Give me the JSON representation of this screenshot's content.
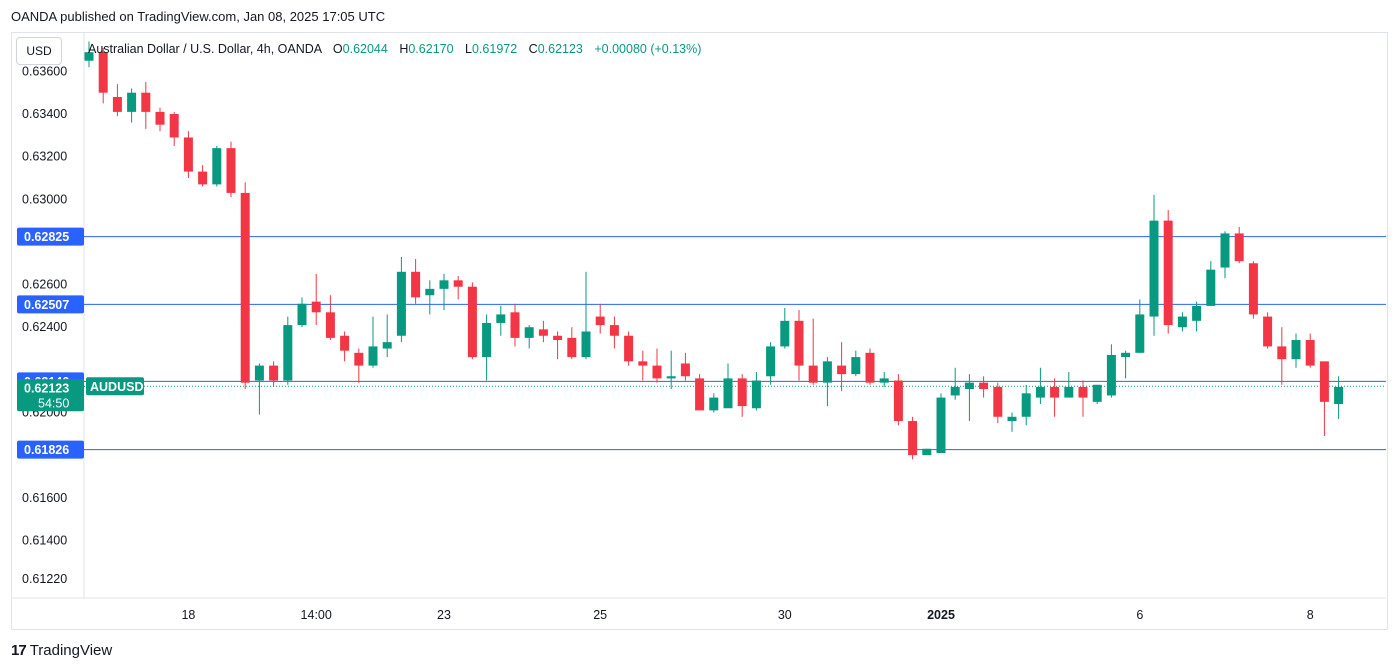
{
  "header": {
    "published_text": "OANDA published on TradingView.com, Jan 08, 2025 17:05 UTC"
  },
  "legend": {
    "symbol": "Australian Dollar / U.S. Dollar, 4h, OANDA",
    "open_label": "O",
    "open": "0.62044",
    "high_label": "H",
    "high": "0.62170",
    "low_label": "L",
    "low": "0.61972",
    "close_label": "C",
    "close": "0.62123",
    "change": "+0.00080 (+0.13%)"
  },
  "price_scale": {
    "unit": "USD"
  },
  "brand": {
    "logo_mark": "17",
    "name": "TradingView"
  },
  "colors": {
    "up": "#089981",
    "down": "#f23645",
    "level_line": "#2962ff",
    "level_label_bg": "#2962ff",
    "last_price_bg": "#089981"
  },
  "chart_data": {
    "type": "candlestick",
    "symbol": "AUDUSD",
    "interval": "4h",
    "ylim": [
      0.6113,
      0.6378
    ],
    "y_ticks": [
      "0.63600",
      "0.63400",
      "0.63200",
      "0.63000",
      "0.62600",
      "0.62400",
      "0.62000",
      "0.61600",
      "0.61400",
      "0.61220"
    ],
    "x_ticks": [
      "18",
      "14:00",
      "23",
      "25",
      "30",
      "2025",
      "6",
      "8"
    ],
    "horizontal_levels": [
      "0.62825",
      "0.62507",
      "0.62146",
      "0.61826"
    ],
    "last_price": {
      "symbol": "AUDUSD",
      "price": "0.62123",
      "countdown": "54:50"
    },
    "candles": [
      {
        "o": 0.6365,
        "h": 0.6374,
        "l": 0.6362,
        "c": 0.6369
      },
      {
        "o": 0.6369,
        "h": 0.6371,
        "l": 0.6345,
        "c": 0.635
      },
      {
        "o": 0.6348,
        "h": 0.6354,
        "l": 0.6339,
        "c": 0.6341
      },
      {
        "o": 0.6341,
        "h": 0.6352,
        "l": 0.6336,
        "c": 0.635
      },
      {
        "o": 0.635,
        "h": 0.6355,
        "l": 0.6333,
        "c": 0.6341
      },
      {
        "o": 0.6341,
        "h": 0.6343,
        "l": 0.6332,
        "c": 0.6335
      },
      {
        "o": 0.634,
        "h": 0.6341,
        "l": 0.6325,
        "c": 0.6329
      },
      {
        "o": 0.6329,
        "h": 0.6332,
        "l": 0.631,
        "c": 0.6313
      },
      {
        "o": 0.6313,
        "h": 0.6316,
        "l": 0.6306,
        "c": 0.6307
      },
      {
        "o": 0.6307,
        "h": 0.6325,
        "l": 0.6306,
        "c": 0.6324
      },
      {
        "o": 0.6324,
        "h": 0.6327,
        "l": 0.6301,
        "c": 0.6303
      },
      {
        "o": 0.6303,
        "h": 0.6308,
        "l": 0.6211,
        "c": 0.6214
      },
      {
        "o": 0.6215,
        "h": 0.6223,
        "l": 0.6199,
        "c": 0.6222
      },
      {
        "o": 0.6222,
        "h": 0.6224,
        "l": 0.6212,
        "c": 0.6215
      },
      {
        "o": 0.6215,
        "h": 0.6245,
        "l": 0.6213,
        "c": 0.6241
      },
      {
        "o": 0.6241,
        "h": 0.6254,
        "l": 0.624,
        "c": 0.6251
      },
      {
        "o": 0.6252,
        "h": 0.6265,
        "l": 0.6241,
        "c": 0.6247
      },
      {
        "o": 0.6247,
        "h": 0.6255,
        "l": 0.6234,
        "c": 0.6235
      },
      {
        "o": 0.6236,
        "h": 0.6238,
        "l": 0.6224,
        "c": 0.6229
      },
      {
        "o": 0.6228,
        "h": 0.623,
        "l": 0.6214,
        "c": 0.6222
      },
      {
        "o": 0.6222,
        "h": 0.6245,
        "l": 0.6221,
        "c": 0.6231
      },
      {
        "o": 0.623,
        "h": 0.6246,
        "l": 0.6226,
        "c": 0.6233
      },
      {
        "o": 0.6236,
        "h": 0.6273,
        "l": 0.6233,
        "c": 0.6266
      },
      {
        "o": 0.6266,
        "h": 0.6272,
        "l": 0.6251,
        "c": 0.6254
      },
      {
        "o": 0.6255,
        "h": 0.6262,
        "l": 0.6246,
        "c": 0.6258
      },
      {
        "o": 0.6258,
        "h": 0.6265,
        "l": 0.6248,
        "c": 0.6262
      },
      {
        "o": 0.6262,
        "h": 0.6264,
        "l": 0.6253,
        "c": 0.6259
      },
      {
        "o": 0.6259,
        "h": 0.6261,
        "l": 0.6225,
        "c": 0.6226
      },
      {
        "o": 0.6226,
        "h": 0.6246,
        "l": 0.6215,
        "c": 0.6242
      },
      {
        "o": 0.6242,
        "h": 0.625,
        "l": 0.6236,
        "c": 0.6246
      },
      {
        "o": 0.6247,
        "h": 0.6251,
        "l": 0.6231,
        "c": 0.6235
      },
      {
        "o": 0.6235,
        "h": 0.6241,
        "l": 0.623,
        "c": 0.624
      },
      {
        "o": 0.6239,
        "h": 0.6243,
        "l": 0.6233,
        "c": 0.6236
      },
      {
        "o": 0.6236,
        "h": 0.6238,
        "l": 0.6225,
        "c": 0.6234
      },
      {
        "o": 0.6235,
        "h": 0.624,
        "l": 0.6225,
        "c": 0.6226
      },
      {
        "o": 0.6226,
        "h": 0.6266,
        "l": 0.6225,
        "c": 0.6238
      },
      {
        "o": 0.6245,
        "h": 0.6251,
        "l": 0.6237,
        "c": 0.6241
      },
      {
        "o": 0.6241,
        "h": 0.6245,
        "l": 0.623,
        "c": 0.6236
      },
      {
        "o": 0.6236,
        "h": 0.6238,
        "l": 0.6222,
        "c": 0.6224
      },
      {
        "o": 0.6224,
        "h": 0.6229,
        "l": 0.6215,
        "c": 0.6222
      },
      {
        "o": 0.6222,
        "h": 0.623,
        "l": 0.6214,
        "c": 0.6216
      },
      {
        "o": 0.6216,
        "h": 0.6229,
        "l": 0.6211,
        "c": 0.6217
      },
      {
        "o": 0.6223,
        "h": 0.6228,
        "l": 0.6215,
        "c": 0.6217
      },
      {
        "o": 0.6216,
        "h": 0.6218,
        "l": 0.6202,
        "c": 0.6201
      },
      {
        "o": 0.6201,
        "h": 0.6209,
        "l": 0.62,
        "c": 0.6207
      },
      {
        "o": 0.6202,
        "h": 0.6223,
        "l": 0.6203,
        "c": 0.6216
      },
      {
        "o": 0.6216,
        "h": 0.6218,
        "l": 0.6198,
        "c": 0.6203
      },
      {
        "o": 0.6202,
        "h": 0.6219,
        "l": 0.6201,
        "c": 0.6215
      },
      {
        "o": 0.6217,
        "h": 0.6233,
        "l": 0.6213,
        "c": 0.6231
      },
      {
        "o": 0.6231,
        "h": 0.6249,
        "l": 0.623,
        "c": 0.6243
      },
      {
        "o": 0.6243,
        "h": 0.6248,
        "l": 0.6215,
        "c": 0.6222
      },
      {
        "o": 0.6222,
        "h": 0.6244,
        "l": 0.6213,
        "c": 0.6214
      },
      {
        "o": 0.6214,
        "h": 0.6226,
        "l": 0.6203,
        "c": 0.6224
      },
      {
        "o": 0.6222,
        "h": 0.6233,
        "l": 0.621,
        "c": 0.6218
      },
      {
        "o": 0.6218,
        "h": 0.6229,
        "l": 0.6217,
        "c": 0.6226
      },
      {
        "o": 0.6228,
        "h": 0.623,
        "l": 0.6213,
        "c": 0.6214
      },
      {
        "o": 0.6214,
        "h": 0.6219,
        "l": 0.6212,
        "c": 0.6216
      },
      {
        "o": 0.6215,
        "h": 0.6218,
        "l": 0.6194,
        "c": 0.6196
      },
      {
        "o": 0.6196,
        "h": 0.6198,
        "l": 0.6178,
        "c": 0.618
      },
      {
        "o": 0.618,
        "h": 0.6183,
        "l": 0.6181,
        "c": 0.6183
      },
      {
        "o": 0.6181,
        "h": 0.6209,
        "l": 0.6181,
        "c": 0.6207
      },
      {
        "o": 0.6208,
        "h": 0.6221,
        "l": 0.6206,
        "c": 0.6212
      },
      {
        "o": 0.6211,
        "h": 0.6218,
        "l": 0.6196,
        "c": 0.6214
      },
      {
        "o": 0.6214,
        "h": 0.6217,
        "l": 0.6207,
        "c": 0.6211
      },
      {
        "o": 0.6212,
        "h": 0.6214,
        "l": 0.6195,
        "c": 0.6198
      },
      {
        "o": 0.6196,
        "h": 0.62,
        "l": 0.6191,
        "c": 0.6198
      },
      {
        "o": 0.6198,
        "h": 0.6213,
        "l": 0.6194,
        "c": 0.6209
      },
      {
        "o": 0.6207,
        "h": 0.6221,
        "l": 0.6204,
        "c": 0.6212
      },
      {
        "o": 0.6212,
        "h": 0.6216,
        "l": 0.6198,
        "c": 0.6207
      },
      {
        "o": 0.6207,
        "h": 0.6219,
        "l": 0.6207,
        "c": 0.6212
      },
      {
        "o": 0.6212,
        "h": 0.6215,
        "l": 0.6198,
        "c": 0.6207
      },
      {
        "o": 0.6205,
        "h": 0.6213,
        "l": 0.6204,
        "c": 0.6213
      },
      {
        "o": 0.6208,
        "h": 0.6232,
        "l": 0.6207,
        "c": 0.6227
      },
      {
        "o": 0.6226,
        "h": 0.6229,
        "l": 0.6216,
        "c": 0.6228
      },
      {
        "o": 0.6228,
        "h": 0.6253,
        "l": 0.6228,
        "c": 0.6246
      },
      {
        "o": 0.6245,
        "h": 0.6302,
        "l": 0.6236,
        "c": 0.629
      },
      {
        "o": 0.629,
        "h": 0.6295,
        "l": 0.6237,
        "c": 0.6241
      },
      {
        "o": 0.624,
        "h": 0.6247,
        "l": 0.6238,
        "c": 0.6245
      },
      {
        "o": 0.6243,
        "h": 0.6252,
        "l": 0.6238,
        "c": 0.625
      },
      {
        "o": 0.625,
        "h": 0.6271,
        "l": 0.6251,
        "c": 0.6267
      },
      {
        "o": 0.6268,
        "h": 0.6285,
        "l": 0.6263,
        "c": 0.6284
      },
      {
        "o": 0.6284,
        "h": 0.6287,
        "l": 0.627,
        "c": 0.6271
      },
      {
        "o": 0.627,
        "h": 0.6271,
        "l": 0.6244,
        "c": 0.6246
      },
      {
        "o": 0.6245,
        "h": 0.6247,
        "l": 0.623,
        "c": 0.6231
      },
      {
        "o": 0.6231,
        "h": 0.624,
        "l": 0.6213,
        "c": 0.6225
      },
      {
        "o": 0.6225,
        "h": 0.6237,
        "l": 0.6221,
        "c": 0.6234
      },
      {
        "o": 0.6234,
        "h": 0.6237,
        "l": 0.6221,
        "c": 0.6222
      },
      {
        "o": 0.6224,
        "h": 0.6222,
        "l": 0.6189,
        "c": 0.6205
      },
      {
        "o": 0.6204,
        "h": 0.6217,
        "l": 0.6197,
        "c": 0.6212
      }
    ]
  }
}
